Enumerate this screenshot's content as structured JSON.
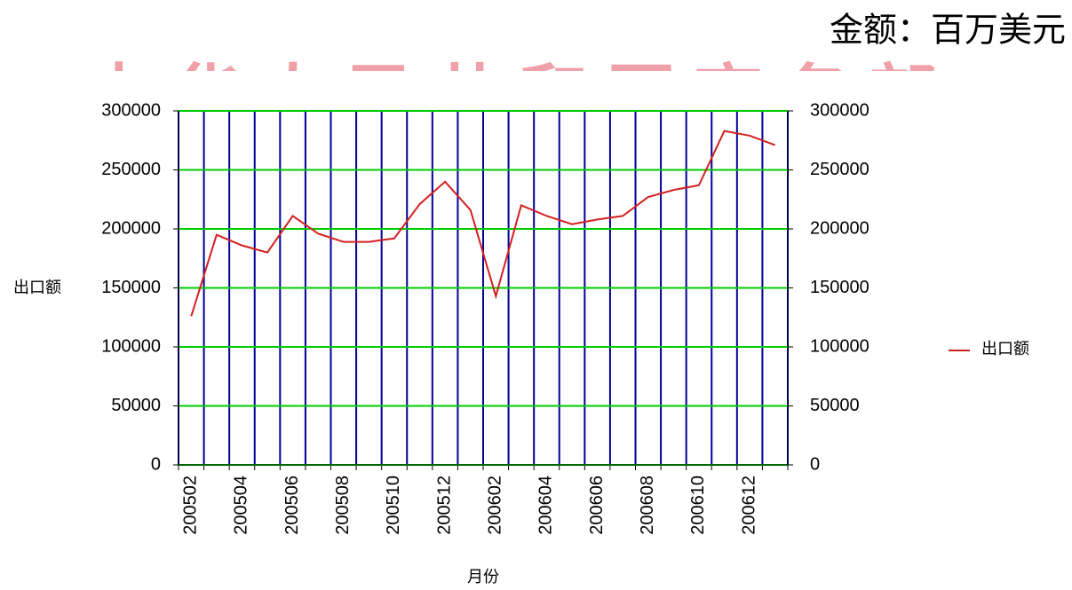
{
  "chart_data": {
    "type": "line",
    "title": "金额：百万美元",
    "watermark": "中华人民共和国商务部",
    "x_label": "月份",
    "y_label": "出口额",
    "categories": [
      "200502",
      null,
      "200504",
      null,
      "200506",
      null,
      "200508",
      null,
      "200510",
      null,
      "200512",
      null,
      "200602",
      null,
      "200604",
      null,
      "200606",
      null,
      "200608",
      null,
      "200610",
      null,
      "200612",
      null
    ],
    "series": [
      {
        "name": "出口额",
        "color": "#d42020",
        "values": [
          126000,
          195000,
          186000,
          180000,
          211000,
          196000,
          189000,
          189000,
          192000,
          221000,
          240000,
          216000,
          143000,
          220000,
          211000,
          204000,
          208000,
          211000,
          227000,
          233000,
          237000,
          283000,
          279000,
          271000
        ]
      }
    ],
    "ylim": [
      0,
      300000
    ],
    "yticks": [
      0,
      50000,
      100000,
      150000,
      200000,
      250000,
      300000
    ],
    "y2lim": [
      0,
      300000
    ],
    "y2ticks": [
      0,
      50000,
      100000,
      150000,
      200000,
      250000,
      300000
    ],
    "grid": true,
    "grid_color": "#00cc00",
    "category_grid_color": "#000099",
    "legend": "right"
  }
}
